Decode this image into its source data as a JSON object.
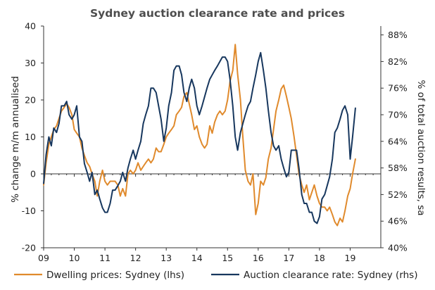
{
  "chart_data": {
    "type": "line",
    "title": "Sydney auction clearance rate and prices",
    "ylabel_left": "% change m/m annualised",
    "ylabel_right": "% of total auction results, sa",
    "x_ticks": [
      "09",
      "10",
      "11",
      "12",
      "13",
      "14",
      "15",
      "16",
      "17",
      "18",
      "19"
    ],
    "x_range": [
      2009.0,
      2020.0
    ],
    "ylim_left": [
      -20,
      40
    ],
    "yticks_left": [
      -20,
      -10,
      0,
      10,
      20,
      30,
      40
    ],
    "ylim_right": [
      40,
      90
    ],
    "yticks_right": [
      "40%",
      "46%",
      "52%",
      "58%",
      "64%",
      "70%",
      "76%",
      "82%",
      "88%"
    ],
    "yticks_right_values": [
      40,
      46,
      52,
      58,
      64,
      70,
      76,
      82,
      88
    ],
    "legend_position": "bottom",
    "grid": false,
    "series": [
      {
        "name": "Dwelling prices: Sydney (lhs)",
        "axis": "left",
        "color": "#e08a2c",
        "points": [
          [
            2009.0,
            -3
          ],
          [
            2009.08,
            3
          ],
          [
            2009.17,
            8
          ],
          [
            2009.25,
            10
          ],
          [
            2009.33,
            12
          ],
          [
            2009.42,
            13
          ],
          [
            2009.5,
            15
          ],
          [
            2009.58,
            17
          ],
          [
            2009.67,
            18
          ],
          [
            2009.75,
            19
          ],
          [
            2009.83,
            18
          ],
          [
            2009.92,
            16
          ],
          [
            2010.0,
            12
          ],
          [
            2010.08,
            11
          ],
          [
            2010.17,
            10
          ],
          [
            2010.25,
            7
          ],
          [
            2010.33,
            5
          ],
          [
            2010.42,
            3
          ],
          [
            2010.5,
            2
          ],
          [
            2010.58,
            0
          ],
          [
            2010.67,
            -2
          ],
          [
            2010.75,
            -6
          ],
          [
            2010.83,
            -2
          ],
          [
            2010.92,
            1
          ],
          [
            2011.0,
            -2
          ],
          [
            2011.08,
            -3
          ],
          [
            2011.17,
            -2
          ],
          [
            2011.25,
            -2
          ],
          [
            2011.33,
            -2
          ],
          [
            2011.42,
            -3
          ],
          [
            2011.5,
            -6
          ],
          [
            2011.58,
            -4
          ],
          [
            2011.67,
            -6
          ],
          [
            2011.75,
            0
          ],
          [
            2011.83,
            1
          ],
          [
            2011.92,
            0
          ],
          [
            2012.0,
            1
          ],
          [
            2012.08,
            3
          ],
          [
            2012.17,
            1
          ],
          [
            2012.25,
            2
          ],
          [
            2012.33,
            3
          ],
          [
            2012.42,
            4
          ],
          [
            2012.5,
            3
          ],
          [
            2012.58,
            4
          ],
          [
            2012.67,
            7
          ],
          [
            2012.75,
            6
          ],
          [
            2012.83,
            6
          ],
          [
            2012.92,
            8
          ],
          [
            2013.0,
            10
          ],
          [
            2013.08,
            11
          ],
          [
            2013.17,
            12
          ],
          [
            2013.25,
            13
          ],
          [
            2013.33,
            16
          ],
          [
            2013.42,
            17
          ],
          [
            2013.5,
            18
          ],
          [
            2013.58,
            21
          ],
          [
            2013.67,
            22
          ],
          [
            2013.75,
            19
          ],
          [
            2013.83,
            16
          ],
          [
            2013.92,
            12
          ],
          [
            2014.0,
            13
          ],
          [
            2014.08,
            10
          ],
          [
            2014.17,
            8
          ],
          [
            2014.25,
            7
          ],
          [
            2014.33,
            8
          ],
          [
            2014.42,
            13
          ],
          [
            2014.5,
            11
          ],
          [
            2014.58,
            14
          ],
          [
            2014.67,
            16
          ],
          [
            2014.75,
            17
          ],
          [
            2014.83,
            16
          ],
          [
            2014.92,
            17
          ],
          [
            2015.0,
            20
          ],
          [
            2015.08,
            25
          ],
          [
            2015.17,
            28
          ],
          [
            2015.25,
            35
          ],
          [
            2015.33,
            27
          ],
          [
            2015.42,
            20
          ],
          [
            2015.5,
            10
          ],
          [
            2015.58,
            1
          ],
          [
            2015.67,
            -2
          ],
          [
            2015.75,
            -3
          ],
          [
            2015.83,
            0
          ],
          [
            2015.92,
            -11
          ],
          [
            2016.0,
            -8
          ],
          [
            2016.08,
            -2
          ],
          [
            2016.17,
            -3
          ],
          [
            2016.25,
            -1
          ],
          [
            2016.33,
            4
          ],
          [
            2016.42,
            7
          ],
          [
            2016.5,
            12
          ],
          [
            2016.58,
            17
          ],
          [
            2016.67,
            20
          ],
          [
            2016.75,
            23
          ],
          [
            2016.83,
            24
          ],
          [
            2016.92,
            21
          ],
          [
            2017.0,
            18
          ],
          [
            2017.08,
            15
          ],
          [
            2017.17,
            10
          ],
          [
            2017.25,
            5
          ],
          [
            2017.33,
            0
          ],
          [
            2017.42,
            -3
          ],
          [
            2017.5,
            -5
          ],
          [
            2017.58,
            -3
          ],
          [
            2017.67,
            -7
          ],
          [
            2017.75,
            -5
          ],
          [
            2017.83,
            -3
          ],
          [
            2017.92,
            -6
          ],
          [
            2018.0,
            -8
          ],
          [
            2018.08,
            -9
          ],
          [
            2018.17,
            -9
          ],
          [
            2018.25,
            -10
          ],
          [
            2018.33,
            -9
          ],
          [
            2018.42,
            -11
          ],
          [
            2018.5,
            -13
          ],
          [
            2018.58,
            -14
          ],
          [
            2018.67,
            -12
          ],
          [
            2018.75,
            -13
          ],
          [
            2018.83,
            -10
          ],
          [
            2018.92,
            -6
          ],
          [
            2019.0,
            -4
          ],
          [
            2019.08,
            0
          ],
          [
            2019.17,
            4
          ]
        ]
      },
      {
        "name": "Auction clearance rate: Sydney (rhs)",
        "axis": "right",
        "color": "#17375e",
        "points": [
          [
            2009.0,
            54.5
          ],
          [
            2009.08,
            61
          ],
          [
            2009.17,
            65
          ],
          [
            2009.25,
            63
          ],
          [
            2009.33,
            67
          ],
          [
            2009.42,
            66
          ],
          [
            2009.5,
            68
          ],
          [
            2009.58,
            72
          ],
          [
            2009.67,
            72
          ],
          [
            2009.75,
            73
          ],
          [
            2009.83,
            70
          ],
          [
            2009.92,
            69
          ],
          [
            2010.0,
            70
          ],
          [
            2010.08,
            72
          ],
          [
            2010.17,
            65
          ],
          [
            2010.25,
            64
          ],
          [
            2010.33,
            59
          ],
          [
            2010.42,
            57
          ],
          [
            2010.5,
            55
          ],
          [
            2010.58,
            57
          ],
          [
            2010.67,
            52
          ],
          [
            2010.75,
            53
          ],
          [
            2010.83,
            51
          ],
          [
            2010.92,
            49
          ],
          [
            2011.0,
            48
          ],
          [
            2011.08,
            48
          ],
          [
            2011.17,
            50
          ],
          [
            2011.25,
            53
          ],
          [
            2011.33,
            53
          ],
          [
            2011.42,
            54
          ],
          [
            2011.5,
            55
          ],
          [
            2011.58,
            57
          ],
          [
            2011.67,
            55
          ],
          [
            2011.75,
            58
          ],
          [
            2011.83,
            60
          ],
          [
            2011.92,
            62
          ],
          [
            2012.0,
            60
          ],
          [
            2012.08,
            62
          ],
          [
            2012.17,
            64
          ],
          [
            2012.25,
            68
          ],
          [
            2012.33,
            70
          ],
          [
            2012.42,
            72
          ],
          [
            2012.5,
            76
          ],
          [
            2012.58,
            76
          ],
          [
            2012.67,
            75
          ],
          [
            2012.75,
            72
          ],
          [
            2012.83,
            69
          ],
          [
            2012.92,
            64
          ],
          [
            2013.0,
            67
          ],
          [
            2013.08,
            72
          ],
          [
            2013.17,
            75
          ],
          [
            2013.25,
            80
          ],
          [
            2013.33,
            81
          ],
          [
            2013.42,
            81
          ],
          [
            2013.5,
            79
          ],
          [
            2013.58,
            75
          ],
          [
            2013.67,
            73
          ],
          [
            2013.75,
            76
          ],
          [
            2013.83,
            78
          ],
          [
            2013.92,
            76
          ],
          [
            2014.0,
            72
          ],
          [
            2014.08,
            70
          ],
          [
            2014.17,
            72
          ],
          [
            2014.25,
            74
          ],
          [
            2014.33,
            76
          ],
          [
            2014.42,
            78
          ],
          [
            2014.5,
            79
          ],
          [
            2014.58,
            80
          ],
          [
            2014.67,
            81
          ],
          [
            2014.75,
            82
          ],
          [
            2014.83,
            83
          ],
          [
            2014.92,
            83
          ],
          [
            2015.0,
            82
          ],
          [
            2015.08,
            78
          ],
          [
            2015.17,
            72
          ],
          [
            2015.25,
            65
          ],
          [
            2015.33,
            62
          ],
          [
            2015.42,
            66
          ],
          [
            2015.5,
            68
          ],
          [
            2015.58,
            70
          ],
          [
            2015.67,
            72
          ],
          [
            2015.75,
            73
          ],
          [
            2015.83,
            76
          ],
          [
            2015.92,
            79
          ],
          [
            2016.0,
            82
          ],
          [
            2016.08,
            84
          ],
          [
            2016.17,
            80
          ],
          [
            2016.25,
            76
          ],
          [
            2016.33,
            71
          ],
          [
            2016.42,
            66
          ],
          [
            2016.5,
            63
          ],
          [
            2016.58,
            62
          ],
          [
            2016.67,
            63
          ],
          [
            2016.75,
            60
          ],
          [
            2016.83,
            58
          ],
          [
            2016.92,
            56
          ],
          [
            2017.0,
            57
          ],
          [
            2017.08,
            62
          ],
          [
            2017.17,
            62
          ],
          [
            2017.25,
            62
          ],
          [
            2017.33,
            58
          ],
          [
            2017.42,
            52
          ],
          [
            2017.5,
            50
          ],
          [
            2017.58,
            50
          ],
          [
            2017.67,
            48
          ],
          [
            2017.75,
            48
          ],
          [
            2017.83,
            46
          ],
          [
            2017.92,
            45.5
          ],
          [
            2018.0,
            47
          ],
          [
            2018.08,
            51
          ],
          [
            2018.17,
            52
          ],
          [
            2018.25,
            54
          ],
          [
            2018.33,
            56
          ],
          [
            2018.42,
            60
          ],
          [
            2018.5,
            66
          ],
          [
            2018.58,
            67
          ],
          [
            2018.67,
            69
          ],
          [
            2018.75,
            71
          ],
          [
            2018.83,
            72
          ],
          [
            2018.92,
            70
          ],
          [
            2019.0,
            60
          ],
          [
            2019.08,
            65
          ],
          [
            2019.17,
            71.5
          ]
        ]
      }
    ]
  }
}
